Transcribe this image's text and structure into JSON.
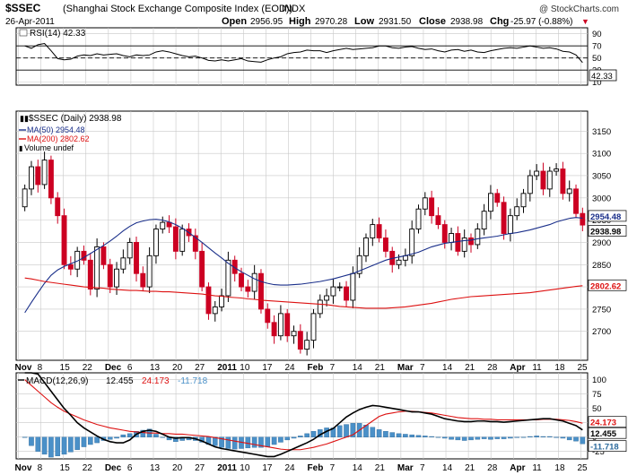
{
  "header": {
    "title": "$SSEC",
    "subtitle": "(Shanghai Stock Exchange Composite Index (EOD))",
    "exchange": "INDX",
    "watermark": "@ StockCharts.com",
    "date": "26-Apr-2011",
    "open_label": "Open",
    "open_value": "2956.95",
    "high_label": "High",
    "high_value": "2970.28",
    "low_label": "Low",
    "low_value": "2931.50",
    "close_label": "Close",
    "close_value": "2938.98",
    "chg_label": "Chg",
    "chg_value": "-25.97 (-0.88%)",
    "chg_arrow": "▼"
  },
  "rsi_panel": {
    "label": "RSI(14) 42.33",
    "value_box": "42.33"
  },
  "price_panel": {
    "legend_main": "$SSEC (Daily) 2938.98",
    "legend_ma50": "MA(50) 2954.48",
    "legend_ma200": "MA(200) 2802.62",
    "legend_volume": "Volume undef",
    "box_close": "2938.98",
    "box_ma50": "2954.48",
    "box_ma200": "2802.62"
  },
  "macd_panel": {
    "label_prefix": "MACD(12,26,9)",
    "macd_value": "12.455",
    "signal_value": "24.173",
    "hist_value": "-11.718",
    "box_macd": "12.455",
    "box_signal": "24.173",
    "box_hist": "-11.718"
  },
  "x_axis": {
    "top_labels": [
      "Nov",
      "8",
      "15",
      "22",
      "Dec",
      "6",
      "13",
      "20",
      "27",
      "2011",
      "10",
      "17",
      "24",
      "Feb",
      "7",
      "14",
      "21",
      "Mar",
      "7",
      "14",
      "21",
      "28",
      "Apr",
      "11",
      "18",
      "25"
    ],
    "bottom_labels": [
      "Nov",
      "8",
      "15",
      "22",
      "Dec",
      "6",
      "13",
      "20",
      "27",
      "2011",
      "10",
      "17",
      "24",
      "Feb",
      "7",
      "14",
      "21",
      "Mar",
      "7",
      "14",
      "21",
      "28",
      "Apr",
      "11",
      "18",
      "25"
    ]
  },
  "colors": {
    "up_candle": "#000000",
    "down_candle": "#cc0022",
    "ma50": "#1a2f8a",
    "ma200": "#dd1111",
    "macd_line": "#000000",
    "signal_line": "#dd1111",
    "histogram": "#4a90c8",
    "grid": "#c8c8c8"
  },
  "chart_data": [
    {
      "type": "line",
      "name": "RSI(14)",
      "y_ticks": [
        10,
        30,
        50,
        70,
        90
      ],
      "ylim": [
        5,
        100
      ],
      "reference_lines": [
        30,
        50,
        70
      ],
      "values": [
        70,
        66,
        72,
        74,
        62,
        49,
        47,
        48,
        53,
        55,
        54,
        57,
        55,
        56,
        57,
        54,
        52,
        55,
        54,
        55,
        60,
        62,
        60,
        57,
        54,
        52,
        53,
        50,
        46,
        45,
        47,
        45,
        47,
        49,
        45,
        44,
        43,
        47,
        50,
        52,
        57,
        59,
        60,
        63,
        62,
        62,
        59,
        62,
        64,
        66,
        64,
        65,
        66,
        67,
        70,
        70,
        67,
        66,
        68,
        69,
        66,
        64,
        65,
        62,
        60,
        63,
        64,
        61,
        63,
        60,
        59,
        62,
        64,
        66,
        67,
        66,
        68,
        70,
        68,
        66,
        67,
        65,
        61,
        60,
        55,
        42.33
      ]
    },
    {
      "type": "candlestick",
      "name": "$SSEC (Daily)",
      "y_ticks": [
        2700,
        2750,
        2800,
        2850,
        2900,
        2950,
        3000,
        3050,
        3100,
        3150
      ],
      "ylim": [
        2635,
        3195
      ],
      "close": [
        3020,
        3070,
        3030,
        3085,
        3000,
        2960,
        2850,
        2840,
        2880,
        2860,
        2795,
        2890,
        2850,
        2800,
        2840,
        2865,
        2900,
        2830,
        2800,
        2870,
        2930,
        2945,
        2935,
        2880,
        2930,
        2915,
        2880,
        2800,
        2740,
        2755,
        2780,
        2860,
        2830,
        2800,
        2790,
        2830,
        2750,
        2720,
        2690,
        2740,
        2690,
        2700,
        2660,
        2680,
        2740,
        2770,
        2780,
        2800,
        2800,
        2770,
        2830,
        2870,
        2910,
        2940,
        2910,
        2880,
        2850,
        2860,
        2870,
        2930,
        2975,
        3000,
        2960,
        2940,
        2900,
        2920,
        2880,
        2910,
        2895,
        2930,
        2970,
        3010,
        2990,
        2920,
        2960,
        2980,
        3010,
        3050,
        3060,
        3020,
        3060,
        3065,
        3010,
        3020,
        2965,
        2938.98
      ],
      "MA(50)": [
        2742,
        2765,
        2787,
        2808,
        2826,
        2838,
        2846,
        2852,
        2858,
        2866,
        2875,
        2884,
        2893,
        2903,
        2914,
        2926,
        2936,
        2944,
        2948,
        2951,
        2952,
        2950,
        2946,
        2940,
        2932,
        2922,
        2911,
        2900,
        2888,
        2876,
        2865,
        2853,
        2843,
        2834,
        2826,
        2818,
        2812,
        2808,
        2805,
        2804,
        2804,
        2805,
        2806,
        2808,
        2810,
        2812,
        2815,
        2818,
        2822,
        2826,
        2830,
        2836,
        2842,
        2848,
        2854,
        2860,
        2864,
        2867,
        2870,
        2874,
        2878,
        2884,
        2890,
        2894,
        2898,
        2900,
        2902,
        2904,
        2905,
        2908,
        2910,
        2912,
        2914,
        2917,
        2920,
        2922,
        2925,
        2928,
        2932,
        2936,
        2940,
        2946,
        2950,
        2954,
        2956,
        2954.48
      ],
      "MA(200)": [
        2820,
        2818,
        2815,
        2812,
        2810,
        2808,
        2806,
        2804,
        2802,
        2800,
        2799,
        2798,
        2797,
        2795,
        2794,
        2793,
        2792,
        2792,
        2791,
        2790,
        2790,
        2789,
        2789,
        2788,
        2787,
        2786,
        2785,
        2784,
        2782,
        2780,
        2779,
        2777,
        2776,
        2775,
        2773,
        2772,
        2770,
        2769,
        2768,
        2767,
        2766,
        2765,
        2764,
        2763,
        2762,
        2761,
        2760,
        2758,
        2756,
        2755,
        2754,
        2753,
        2752,
        2752,
        2752,
        2752,
        2753,
        2754,
        2755,
        2757,
        2759,
        2761,
        2763,
        2766,
        2769,
        2772,
        2774,
        2776,
        2778,
        2779,
        2780,
        2781,
        2782,
        2783,
        2784,
        2785,
        2786,
        2787,
        2789,
        2791,
        2793,
        2795,
        2797,
        2799,
        2801,
        2802.62
      ]
    },
    {
      "type": "line",
      "name": "MACD(12,26,9)",
      "y_ticks": [
        -25,
        0,
        25,
        50,
        75,
        100
      ],
      "ylim": [
        -38,
        112
      ],
      "MACD": [
        190,
        150,
        110,
        95,
        80,
        65,
        50,
        38,
        25,
        16,
        9,
        2,
        -4,
        -8,
        -10,
        -10,
        -5,
        5,
        10,
        12,
        10,
        5,
        0,
        -2,
        -1,
        -1,
        -3,
        -7,
        -12,
        -17,
        -20,
        -22,
        -24,
        -26,
        -28,
        -30,
        -32,
        -34,
        -34,
        -30,
        -25,
        -20,
        -15,
        -10,
        -4,
        4,
        10,
        15,
        25,
        35,
        42,
        48,
        52,
        55,
        54,
        52,
        50,
        48,
        46,
        44,
        44,
        42,
        40,
        36,
        32,
        30,
        28,
        27,
        27,
        28,
        28,
        27,
        27,
        26,
        27,
        28,
        29,
        30,
        31,
        32,
        32,
        30,
        28,
        24,
        20,
        12.455
      ],
      "Signal": [
        100,
        90,
        80,
        70,
        60,
        52,
        45,
        40,
        35,
        30,
        26,
        22,
        19,
        16,
        14,
        12,
        10,
        9,
        8,
        7,
        7,
        6,
        6,
        5,
        5,
        4,
        3,
        2,
        1,
        -1,
        -3,
        -5,
        -7,
        -9,
        -11,
        -13,
        -15,
        -17,
        -19,
        -21,
        -22,
        -22,
        -22,
        -20,
        -18,
        -15,
        -12,
        -8,
        -4,
        0,
        4,
        12,
        20,
        28,
        36,
        40,
        42,
        44,
        45,
        45,
        44,
        43,
        42,
        40,
        38,
        36,
        34,
        33,
        32,
        32,
        31,
        31,
        30,
        30,
        30,
        30,
        30,
        30,
        30,
        31,
        31,
        31,
        30,
        29,
        27,
        24.173
      ],
      "Histogram": [
        0,
        -15,
        -25,
        -30,
        -35,
        -33,
        -30,
        -26,
        -22,
        -17,
        -13,
        -10,
        -6,
        -4,
        -2,
        4,
        6,
        10,
        12,
        14,
        5,
        0,
        -5,
        -8,
        -6,
        -5,
        -6,
        -9,
        -13,
        -15,
        -18,
        -20,
        -21,
        -20,
        -19,
        -18,
        -18,
        -17,
        -13,
        -9,
        -5,
        -2,
        2,
        6,
        10,
        13,
        16,
        16,
        20,
        22,
        24,
        24,
        21,
        17,
        13,
        10,
        8,
        6,
        5,
        4,
        3,
        2,
        1,
        0,
        -2,
        -4,
        -5,
        -6,
        -5,
        -4,
        -3,
        -4,
        -3,
        -3,
        -2,
        -1,
        0,
        1,
        2,
        1,
        1,
        -1,
        -2,
        -5,
        -7,
        -11.718
      ]
    }
  ]
}
